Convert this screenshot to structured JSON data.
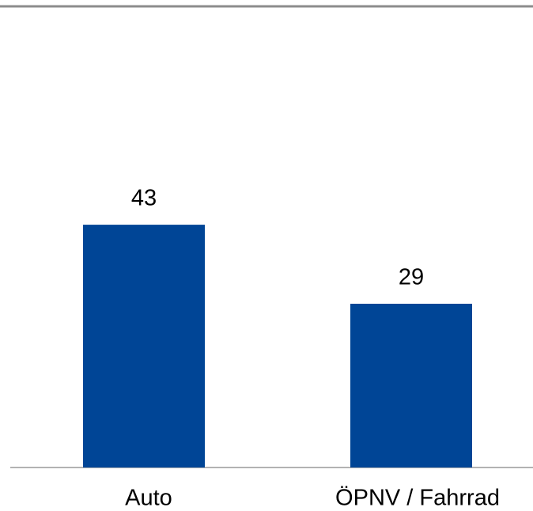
{
  "chart_data": {
    "type": "bar",
    "categories": [
      "Auto",
      "ÖPNV / Fahrrad"
    ],
    "values": [
      43,
      29
    ],
    "color": "#004596",
    "ylim": [
      0,
      80
    ],
    "grid": false
  }
}
